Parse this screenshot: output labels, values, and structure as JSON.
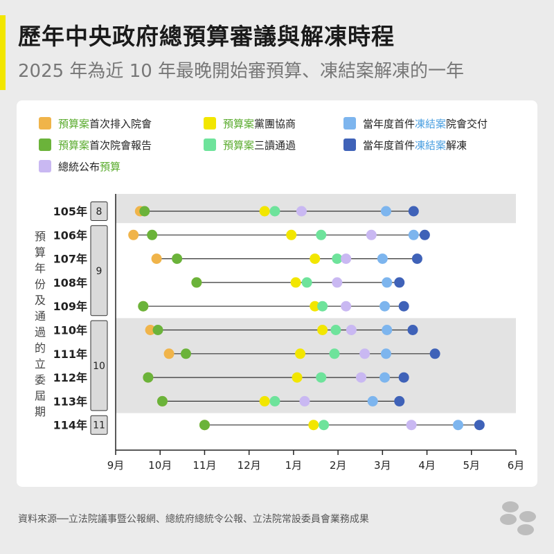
{
  "header": {
    "title": "歷年中央政府總預算審議與解凍時程",
    "subtitle": "2025 年為近 10 年最晚開始審預算、凍結案解凍的一年"
  },
  "footer": {
    "source": "資料來源──立法院議事暨公報網、總統府總統令公報、立法院常設委員會業務成果"
  },
  "colors": {
    "first_listed": "#f0b44a",
    "first_report": "#6bb33a",
    "caucus": "#f2e600",
    "third_reading": "#6ee39b",
    "promulgated": "#c9b8f2",
    "freeze_submitted": "#7db5ee",
    "freeze_lifted": "#3f62b8",
    "legend_green_text": "#5aab2e",
    "legend_blue_text": "#4a9fe0"
  },
  "legend": [
    {
      "key": "first_listed",
      "parts": [
        {
          "t": "預算案",
          "c": "green"
        },
        {
          "t": "首次排入院會"
        }
      ]
    },
    {
      "key": "caucus",
      "parts": [
        {
          "t": "預算案",
          "c": "green"
        },
        {
          "t": "黨團協商"
        }
      ]
    },
    {
      "key": "freeze_submitted",
      "parts": [
        {
          "t": "當年度首件"
        },
        {
          "t": "凍結案",
          "c": "blue"
        },
        {
          "t": "院會交付"
        }
      ]
    },
    {
      "key": "first_report",
      "parts": [
        {
          "t": "預算案",
          "c": "green"
        },
        {
          "t": "首次院會報告"
        }
      ]
    },
    {
      "key": "third_reading",
      "parts": [
        {
          "t": "預算案",
          "c": "green"
        },
        {
          "t": "三讀通過"
        }
      ]
    },
    {
      "key": "freeze_lifted",
      "parts": [
        {
          "t": "當年度首件"
        },
        {
          "t": "凍結案",
          "c": "blue"
        },
        {
          "t": "解凍"
        }
      ]
    },
    {
      "key": "promulgated",
      "parts": [
        {
          "t": "總統公布"
        },
        {
          "t": "預算",
          "c": "green"
        }
      ]
    }
  ],
  "y_axis_label": "預算年份及通過的立委屆期",
  "chart_data": {
    "type": "timeline",
    "x_unit": "month (9 = Sep of preceding year, 15 = Mar, 18 = Jun)",
    "x_ticks": [
      {
        "value": 9,
        "label": "9月"
      },
      {
        "value": 10,
        "label": "10月"
      },
      {
        "value": 11,
        "label": "11月"
      },
      {
        "value": 12,
        "label": "12月"
      },
      {
        "value": 13,
        "label": "1月"
      },
      {
        "value": 14,
        "label": "2月"
      },
      {
        "value": 15,
        "label": "3月"
      },
      {
        "value": 16,
        "label": "4月"
      },
      {
        "value": 17,
        "label": "5月"
      },
      {
        "value": 18,
        "label": "6月"
      }
    ],
    "xlim": [
      9,
      18
    ],
    "rows": [
      {
        "label": "105年",
        "first_listed": 9.55,
        "first_report": 9.65,
        "caucus": 12.35,
        "third_reading": 12.58,
        "promulgated": 13.18,
        "freeze_submitted": 15.08,
        "freeze_lifted": 15.7
      },
      {
        "label": "106年",
        "first_listed": 9.4,
        "first_report": 9.82,
        "caucus": 12.95,
        "third_reading": 13.62,
        "promulgated": 14.75,
        "freeze_submitted": 15.7,
        "freeze_lifted": 15.95
      },
      {
        "label": "107年",
        "first_listed": 9.92,
        "first_report": 10.38,
        "caucus": 13.48,
        "third_reading": 13.98,
        "promulgated": 14.18,
        "freeze_submitted": 15.0,
        "freeze_lifted": 15.78
      },
      {
        "label": "108年",
        "first_listed": 10.82,
        "first_report": 10.82,
        "caucus": 13.05,
        "third_reading": 13.3,
        "promulgated": 13.98,
        "freeze_submitted": 15.1,
        "freeze_lifted": 15.38
      },
      {
        "label": "109年",
        "first_listed": 9.62,
        "first_report": 9.62,
        "caucus": 13.48,
        "third_reading": 13.65,
        "promulgated": 14.18,
        "freeze_submitted": 15.05,
        "freeze_lifted": 15.48
      },
      {
        "label": "110年",
        "first_listed": 9.78,
        "first_report": 9.95,
        "caucus": 13.65,
        "third_reading": 13.95,
        "promulgated": 14.3,
        "freeze_submitted": 15.1,
        "freeze_lifted": 15.68
      },
      {
        "label": "111年",
        "first_listed": 10.2,
        "first_report": 10.58,
        "caucus": 13.15,
        "third_reading": 13.92,
        "promulgated": 14.6,
        "freeze_submitted": 15.08,
        "freeze_lifted": 16.18
      },
      {
        "label": "112年",
        "first_listed": 9.73,
        "first_report": 9.73,
        "caucus": 13.08,
        "third_reading": 13.62,
        "promulgated": 14.52,
        "freeze_submitted": 15.05,
        "freeze_lifted": 15.48
      },
      {
        "label": "113年",
        "first_listed": 10.05,
        "first_report": 10.05,
        "caucus": 12.35,
        "third_reading": 12.58,
        "promulgated": 13.25,
        "freeze_submitted": 14.78,
        "freeze_lifted": 15.38
      },
      {
        "label": "114年",
        "first_listed": 11.0,
        "first_report": 11.0,
        "caucus": 13.45,
        "third_reading": 13.68,
        "promulgated": 15.65,
        "freeze_submitted": 16.7,
        "freeze_lifted": 17.18
      }
    ],
    "terms": [
      {
        "label": "8",
        "from": 0,
        "to": 0
      },
      {
        "label": "9",
        "from": 1,
        "to": 4
      },
      {
        "label": "10",
        "from": 5,
        "to": 8
      },
      {
        "label": "11",
        "from": 9,
        "to": 9
      }
    ],
    "shaded_rows": [
      0,
      5,
      6,
      7,
      8
    ]
  }
}
